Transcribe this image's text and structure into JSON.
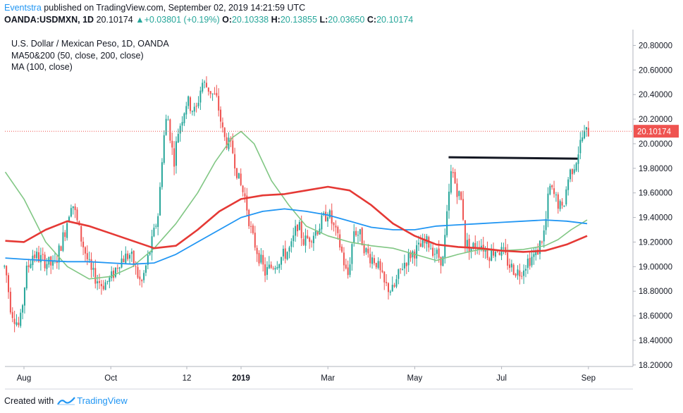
{
  "header": {
    "author": "Eventstra",
    "published": "published on TradingView.com, September 02, 2019 14:21:59 UTC",
    "symbol": "OANDA:USDMXN, 1D",
    "last": "20.10174",
    "change": "+0.03801 (+0.19%)",
    "ohlc": [
      {
        "k": "O:",
        "v": "20.10338"
      },
      {
        "k": "H:",
        "v": "20.13855"
      },
      {
        "k": "L:",
        "v": "20.03650"
      },
      {
        "k": "C:",
        "v": "20.10174"
      }
    ]
  },
  "legend": {
    "title": "U.S. Dollar / Mexican Peso, 1D, OANDA",
    "ma_pair": "MA50&200 (50, close, 200, close)",
    "ma_single": "MA (100, close)"
  },
  "footer": {
    "created_with": "Created with",
    "brand": "TradingView"
  },
  "colors": {
    "up": "#26a69a",
    "down": "#ef5350",
    "ma50": "#81c784",
    "ma100": "#2196f3",
    "ma200": "#e53935",
    "last_price": "#ef5350",
    "resistance": "#131722"
  },
  "chart_data": {
    "type": "candlestick",
    "title": "U.S. Dollar / Mexican Peso, 1D, OANDA",
    "ylim": [
      18.2,
      20.9
    ],
    "y_ticks": [
      "20.80000",
      "20.60000",
      "20.40000",
      "20.20000",
      "20.00000",
      "19.80000",
      "19.60000",
      "19.40000",
      "19.20000",
      "19.00000",
      "18.80000",
      "18.60000",
      "18.40000",
      "18.20000"
    ],
    "x_ticks": [
      {
        "label": "Aug",
        "t": 0.0
      },
      {
        "label": "Oct",
        "t": 2.0
      },
      {
        "label": "12",
        "t": 3.75
      },
      {
        "label": "2019",
        "t": 5.0
      },
      {
        "label": "Mar",
        "t": 7.0
      },
      {
        "label": "May",
        "t": 9.0
      },
      {
        "label": "Jul",
        "t": 11.0
      },
      {
        "label": "Sep",
        "t": 13.0
      }
    ],
    "x_range": [
      -0.45,
      13.0
    ],
    "last_price": 20.10174,
    "last_price_label": "20.10174",
    "price_path": [
      [
        -0.43,
        19.0
      ],
      [
        -0.3,
        18.65
      ],
      [
        -0.1,
        18.5
      ],
      [
        0.05,
        18.95
      ],
      [
        0.2,
        19.1
      ],
      [
        0.45,
        19.05
      ],
      [
        0.7,
        19.0
      ],
      [
        0.95,
        19.3
      ],
      [
        1.1,
        19.55
      ],
      [
        1.3,
        19.25
      ],
      [
        1.55,
        18.95
      ],
      [
        1.8,
        18.85
      ],
      [
        2.0,
        18.9
      ],
      [
        2.2,
        19.05
      ],
      [
        2.45,
        19.1
      ],
      [
        2.7,
        18.85
      ],
      [
        2.95,
        19.2
      ],
      [
        3.1,
        19.45
      ],
      [
        3.2,
        20.0
      ],
      [
        3.3,
        20.25
      ],
      [
        3.45,
        19.85
      ],
      [
        3.55,
        20.1
      ],
      [
        3.75,
        20.35
      ],
      [
        3.95,
        20.25
      ],
      [
        4.1,
        20.5
      ],
      [
        4.25,
        20.45
      ],
      [
        4.45,
        20.35
      ],
      [
        4.6,
        20.05
      ],
      [
        4.8,
        19.95
      ],
      [
        4.95,
        19.7
      ],
      [
        5.1,
        19.55
      ],
      [
        5.25,
        19.25
      ],
      [
        5.4,
        19.1
      ],
      [
        5.55,
        18.95
      ],
      [
        5.7,
        19.0
      ],
      [
        5.85,
        19.05
      ],
      [
        6.0,
        19.1
      ],
      [
        6.15,
        19.15
      ],
      [
        6.3,
        19.35
      ],
      [
        6.45,
        19.2
      ],
      [
        6.6,
        19.25
      ],
      [
        6.75,
        19.3
      ],
      [
        7.0,
        19.45
      ],
      [
        7.15,
        19.3
      ],
      [
        7.3,
        19.15
      ],
      [
        7.45,
        18.9
      ],
      [
        7.6,
        19.3
      ],
      [
        7.75,
        19.25
      ],
      [
        7.9,
        19.1
      ],
      [
        8.1,
        19.05
      ],
      [
        8.3,
        18.85
      ],
      [
        8.5,
        18.8
      ],
      [
        8.7,
        19.0
      ],
      [
        8.9,
        19.1
      ],
      [
        9.1,
        19.15
      ],
      [
        9.3,
        19.2
      ],
      [
        9.5,
        19.1
      ],
      [
        9.65,
        19.05
      ],
      [
        9.78,
        19.55
      ],
      [
        9.85,
        19.8
      ],
      [
        9.95,
        19.65
      ],
      [
        10.1,
        19.5
      ],
      [
        10.15,
        19.2
      ],
      [
        10.3,
        19.15
      ],
      [
        10.5,
        19.2
      ],
      [
        10.7,
        19.1
      ],
      [
        10.9,
        19.15
      ],
      [
        11.05,
        19.1
      ],
      [
        11.2,
        19.0
      ],
      [
        11.4,
        18.95
      ],
      [
        11.6,
        19.05
      ],
      [
        11.8,
        19.1
      ],
      [
        12.0,
        19.3
      ],
      [
        12.1,
        19.65
      ],
      [
        12.25,
        19.55
      ],
      [
        12.4,
        19.45
      ],
      [
        12.55,
        19.75
      ],
      [
        12.7,
        19.85
      ],
      [
        12.85,
        20.05
      ],
      [
        12.97,
        20.1
      ]
    ],
    "series": [
      {
        "name": "MA 50",
        "points": [
          [
            -0.43,
            19.77
          ],
          [
            0.0,
            19.55
          ],
          [
            0.5,
            19.2
          ],
          [
            1.0,
            19.0
          ],
          [
            1.5,
            18.9
          ],
          [
            2.0,
            18.92
          ],
          [
            2.5,
            19.0
          ],
          [
            3.0,
            19.15
          ],
          [
            3.5,
            19.35
          ],
          [
            4.0,
            19.6
          ],
          [
            4.4,
            19.85
          ],
          [
            4.8,
            20.05
          ],
          [
            5.0,
            20.1
          ],
          [
            5.3,
            20.0
          ],
          [
            5.7,
            19.7
          ],
          [
            6.1,
            19.5
          ],
          [
            6.5,
            19.33
          ],
          [
            7.0,
            19.25
          ],
          [
            7.5,
            19.2
          ],
          [
            8.0,
            19.17
          ],
          [
            8.5,
            19.15
          ],
          [
            9.0,
            19.1
          ],
          [
            9.5,
            19.05
          ],
          [
            10.0,
            19.1
          ],
          [
            10.5,
            19.14
          ],
          [
            11.0,
            19.13
          ],
          [
            11.5,
            19.14
          ],
          [
            12.0,
            19.17
          ],
          [
            12.3,
            19.22
          ],
          [
            12.6,
            19.3
          ],
          [
            12.97,
            19.38
          ]
        ]
      },
      {
        "name": "MA 100",
        "points": [
          [
            -0.43,
            19.07
          ],
          [
            0.0,
            19.06
          ],
          [
            0.5,
            19.05
          ],
          [
            1.0,
            19.04
          ],
          [
            1.5,
            19.04
          ],
          [
            2.0,
            19.03
          ],
          [
            2.5,
            19.02
          ],
          [
            3.0,
            19.03
          ],
          [
            3.5,
            19.1
          ],
          [
            4.0,
            19.2
          ],
          [
            4.5,
            19.3
          ],
          [
            5.0,
            19.4
          ],
          [
            5.5,
            19.45
          ],
          [
            6.0,
            19.47
          ],
          [
            6.5,
            19.45
          ],
          [
            7.0,
            19.42
          ],
          [
            7.5,
            19.37
          ],
          [
            8.0,
            19.32
          ],
          [
            8.5,
            19.3
          ],
          [
            9.0,
            19.3
          ],
          [
            9.5,
            19.33
          ],
          [
            10.0,
            19.34
          ],
          [
            10.5,
            19.35
          ],
          [
            11.0,
            19.36
          ],
          [
            11.5,
            19.37
          ],
          [
            12.0,
            19.38
          ],
          [
            12.5,
            19.37
          ],
          [
            12.97,
            19.35
          ]
        ]
      },
      {
        "name": "MA 200",
        "points": [
          [
            -0.43,
            19.21
          ],
          [
            0.0,
            19.2
          ],
          [
            0.5,
            19.3
          ],
          [
            1.0,
            19.37
          ],
          [
            1.5,
            19.33
          ],
          [
            2.0,
            19.27
          ],
          [
            2.5,
            19.21
          ],
          [
            3.0,
            19.15
          ],
          [
            3.5,
            19.17
          ],
          [
            4.0,
            19.3
          ],
          [
            4.5,
            19.45
          ],
          [
            5.0,
            19.55
          ],
          [
            5.5,
            19.58
          ],
          [
            6.0,
            19.59
          ],
          [
            6.5,
            19.62
          ],
          [
            7.0,
            19.65
          ],
          [
            7.5,
            19.62
          ],
          [
            8.0,
            19.5
          ],
          [
            8.5,
            19.35
          ],
          [
            9.0,
            19.25
          ],
          [
            9.5,
            19.18
          ],
          [
            10.0,
            19.16
          ],
          [
            10.5,
            19.15
          ],
          [
            11.0,
            19.13
          ],
          [
            11.5,
            19.12
          ],
          [
            12.0,
            19.13
          ],
          [
            12.5,
            19.18
          ],
          [
            12.97,
            19.25
          ]
        ]
      }
    ],
    "resistance": {
      "x1": 9.78,
      "x2": 12.75,
      "y": 19.89
    }
  }
}
